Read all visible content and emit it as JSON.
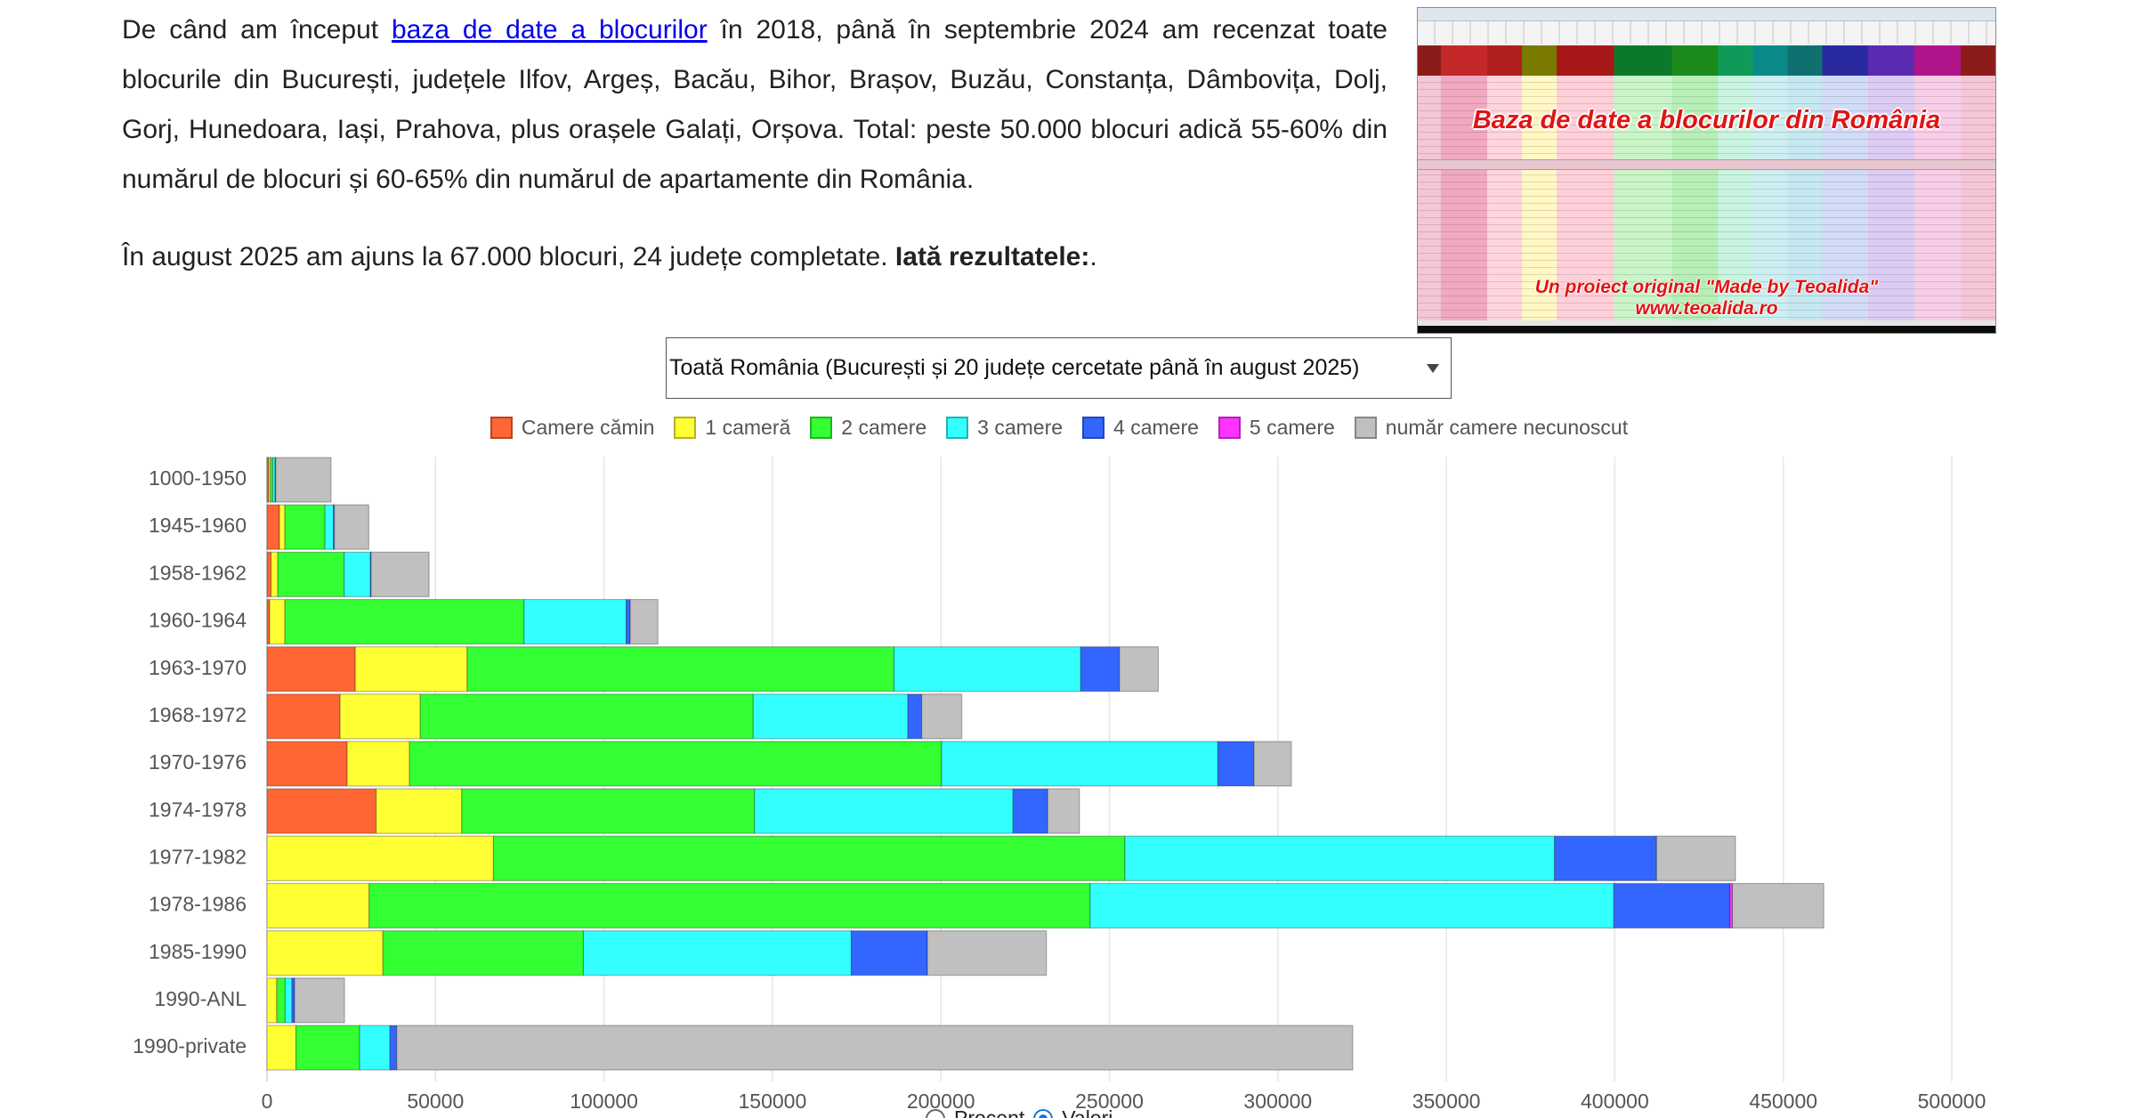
{
  "intro": {
    "p1_before": "De când am început ",
    "p1_link": "baza de date a blocurilor",
    "p1_after": " în 2018, până în septembrie 2024 am recenzat toate blocurile din București, județele Ilfov, Argeș, Bacău, Bihor, Brașov, Buzău, Constanța, Dâmbovița, Dolj, Gorj, Hunedoara, Iași, Prahova, plus orașele Galați, Orșova. Total: peste 50.000 blocuri adică 55-60% din numărul de blocuri și 60-65% din numărul de apartamente din România.",
    "p2_text": "În august 2025 am ajuns la 67.000 blocuri, 24 județe completate. ",
    "p2_bold": "Iată rezultatele:",
    "p2_end": "."
  },
  "figure": {
    "title": "Baza de date a blocurilor din România",
    "subtitle": "Un proiect original \"Made by Teoalida\"",
    "url": "www.teoalida.ro"
  },
  "selector": {
    "selected": "Toată România (București și 20 județe cercetate până în august 2025)",
    "icon": "chevron-down-icon"
  },
  "chart_data": {
    "type": "bar",
    "orientation": "horizontal",
    "stacked": true,
    "categories": [
      "1000-1950",
      "1945-1960",
      "1958-1962",
      "1960-1964",
      "1963-1970",
      "1968-1972",
      "1970-1976",
      "1974-1978",
      "1977-1982",
      "1978-1986",
      "1985-1990",
      "1990-ANL",
      "1990-private"
    ],
    "series": [
      {
        "name": "Camere cămin",
        "color": "#ff6633",
        "values": [
          500,
          3700,
          1200,
          800,
          26200,
          21700,
          23800,
          32400,
          0,
          0,
          0,
          0,
          0
        ]
      },
      {
        "name": "1 cameră",
        "color": "#ffff33",
        "values": [
          500,
          1600,
          2000,
          4500,
          33200,
          23800,
          18500,
          25400,
          67200,
          30300,
          34400,
          2900,
          8600
        ]
      },
      {
        "name": "2 camere",
        "color": "#33ff33",
        "values": [
          700,
          11900,
          19700,
          71000,
          126700,
          98800,
          157900,
          86900,
          187400,
          214000,
          59500,
          2500,
          18900
        ]
      },
      {
        "name": "3 camere",
        "color": "#33ffff",
        "values": [
          700,
          2500,
          7800,
          30300,
          55400,
          45900,
          82000,
          76700,
          127500,
          155400,
          79500,
          2000,
          9000
        ]
      },
      {
        "name": "4 camere",
        "color": "#3366ff",
        "values": [
          200,
          300,
          200,
          1200,
          11500,
          4100,
          10700,
          10300,
          30300,
          34400,
          22600,
          800,
          2000
        ]
      },
      {
        "name": "5 camere",
        "color": "#ff33ff",
        "values": [
          0,
          0,
          0,
          0,
          0,
          0,
          0,
          0,
          0,
          800,
          0,
          0,
          0
        ]
      },
      {
        "name": "număr camere necunoscut",
        "color": "#c0c0c0",
        "values": [
          16400,
          10200,
          17200,
          8200,
          11500,
          11900,
          11100,
          9400,
          23400,
          27100,
          35300,
          14800,
          283700
        ]
      }
    ],
    "xlim": [
      0,
      500000
    ],
    "xticks": [
      0,
      50000,
      100000,
      150000,
      200000,
      250000,
      300000,
      350000,
      400000,
      450000,
      500000
    ],
    "grid": true,
    "legend": "top"
  },
  "view_toggle": {
    "options": [
      "Procent",
      "Valori"
    ],
    "selected": "Valori"
  }
}
